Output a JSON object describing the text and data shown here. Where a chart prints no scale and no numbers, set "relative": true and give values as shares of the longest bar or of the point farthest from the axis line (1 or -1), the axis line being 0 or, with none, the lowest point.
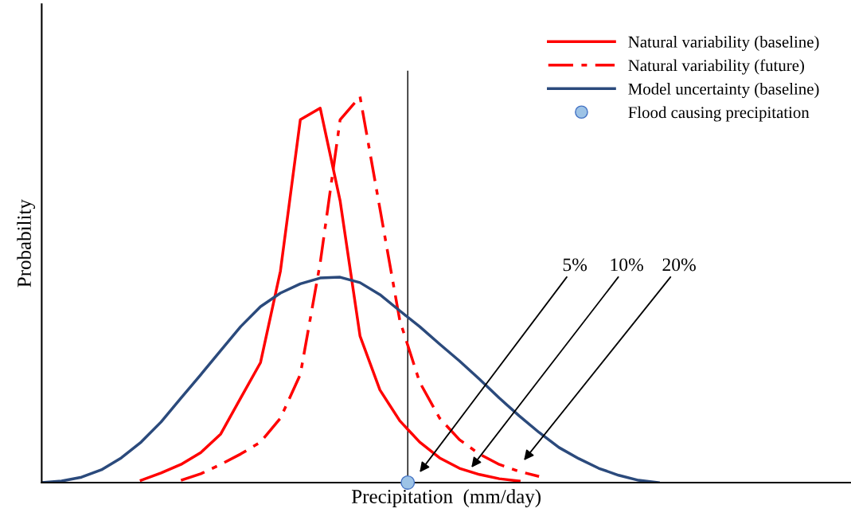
{
  "chart_data": {
    "type": "line",
    "relative": true,
    "xlabel": "Precipitation  (mm/day)",
    "ylabel": "Probability",
    "categories": [
      null,
      null,
      null,
      null,
      null,
      null,
      null,
      null,
      null,
      null,
      null,
      null,
      null,
      null,
      null,
      null,
      null,
      null,
      null,
      null,
      null,
      null,
      null,
      null,
      null,
      null,
      null,
      null,
      null,
      null,
      null,
      null,
      null,
      null,
      null,
      null,
      null,
      null,
      null,
      null,
      null
    ],
    "series": [
      {
        "name": "Natural variability (baseline)",
        "color": "#ff0000",
        "line_style": "solid",
        "values": [
          null,
          null,
          null,
          null,
          null,
          0.006,
          0.025,
          0.047,
          0.078,
          0.126,
          0.219,
          0.311,
          0.548,
          0.94,
          0.97,
          0.73,
          0.38,
          0.24,
          0.16,
          0.105,
          0.064,
          0.037,
          0.021,
          0.01,
          0.004,
          null,
          null,
          null,
          null,
          null,
          null,
          null,
          null,
          null,
          null,
          null,
          null,
          null,
          null,
          null,
          null
        ]
      },
      {
        "name": "Natural variability (future)",
        "color": "#ff0000",
        "line_style": "dashdot",
        "values": [
          null,
          null,
          null,
          null,
          null,
          null,
          null,
          0.006,
          0.023,
          0.047,
          0.074,
          0.105,
          0.167,
          0.28,
          0.569,
          0.94,
          1.0,
          0.71,
          0.42,
          0.26,
          0.167,
          0.111,
          0.074,
          0.047,
          0.029,
          0.016,
          null,
          null,
          null,
          null,
          null,
          null,
          null,
          null,
          null,
          null,
          null,
          null,
          null,
          null,
          null
        ]
      },
      {
        "name": "Model uncertainty (baseline)",
        "color": "#2b4a7c",
        "line_style": "solid",
        "values": [
          0,
          0.004,
          0.014,
          0.033,
          0.064,
          0.105,
          0.157,
          0.219,
          0.28,
          0.342,
          0.404,
          0.456,
          0.491,
          0.515,
          0.53,
          0.532,
          0.518,
          0.487,
          0.445,
          0.404,
          0.359,
          0.315,
          0.268,
          0.219,
          0.173,
          0.13,
          0.091,
          0.062,
          0.037,
          0.019,
          0.006,
          0,
          null,
          null,
          null,
          null,
          null,
          null,
          null,
          null,
          null
        ]
      }
    ],
    "annotations": [
      "Flood causing precipitation",
      "5%",
      "10%",
      "20%"
    ],
    "legend": "top right",
    "tick_labels": false
  }
}
